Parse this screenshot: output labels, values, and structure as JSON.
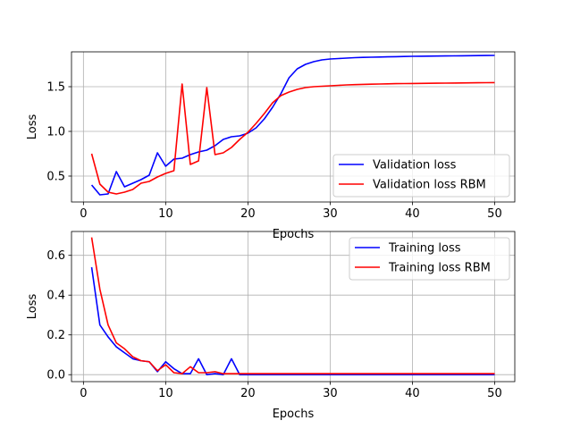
{
  "chart_data": [
    {
      "type": "line",
      "xlabel": "Epochs",
      "ylabel": "Loss",
      "xlim": [
        -1.45,
        52.45
      ],
      "ylim": [
        0.21,
        1.89
      ],
      "xticks": [
        0,
        10,
        20,
        30,
        40,
        50
      ],
      "yticks": [
        0.5,
        1.0,
        1.5
      ],
      "ytick_labels": [
        "0.5",
        "1.0",
        "1.5"
      ],
      "grid": true,
      "legend_position": "lower-right",
      "series": [
        {
          "name": "Validation loss",
          "color": "#0000ff",
          "x": [
            1,
            2,
            3,
            4,
            5,
            6,
            7,
            8,
            9,
            10,
            11,
            12,
            13,
            14,
            15,
            16,
            17,
            18,
            19,
            20,
            21,
            22,
            23,
            24,
            25,
            26,
            27,
            28,
            29,
            30,
            31,
            32,
            33,
            34,
            35,
            36,
            37,
            38,
            39,
            40,
            41,
            42,
            43,
            44,
            45,
            46,
            47,
            48,
            49,
            50
          ],
          "values": [
            0.4,
            0.29,
            0.3,
            0.55,
            0.38,
            0.42,
            0.46,
            0.51,
            0.76,
            0.61,
            0.69,
            0.7,
            0.74,
            0.77,
            0.79,
            0.84,
            0.91,
            0.94,
            0.95,
            0.98,
            1.04,
            1.14,
            1.27,
            1.42,
            1.6,
            1.7,
            1.75,
            1.78,
            1.8,
            1.81,
            1.815,
            1.82,
            1.825,
            1.828,
            1.83,
            1.832,
            1.834,
            1.836,
            1.838,
            1.84,
            1.841,
            1.842,
            1.843,
            1.844,
            1.845,
            1.846,
            1.847,
            1.848,
            1.849,
            1.85
          ]
        },
        {
          "name": " Validation loss RBM",
          "color": "#ff0000",
          "x": [
            1,
            2,
            3,
            4,
            5,
            6,
            7,
            8,
            9,
            10,
            11,
            12,
            13,
            14,
            15,
            16,
            17,
            18,
            19,
            20,
            21,
            22,
            23,
            24,
            25,
            26,
            27,
            28,
            29,
            30,
            31,
            32,
            33,
            34,
            35,
            36,
            37,
            38,
            39,
            40,
            41,
            42,
            43,
            44,
            45,
            46,
            47,
            48,
            49,
            50
          ],
          "values": [
            0.75,
            0.41,
            0.32,
            0.3,
            0.32,
            0.35,
            0.42,
            0.44,
            0.49,
            0.53,
            0.56,
            1.53,
            0.63,
            0.67,
            1.49,
            0.74,
            0.76,
            0.82,
            0.91,
            0.99,
            1.09,
            1.2,
            1.32,
            1.4,
            1.44,
            1.47,
            1.49,
            1.5,
            1.505,
            1.51,
            1.515,
            1.52,
            1.523,
            1.526,
            1.528,
            1.53,
            1.532,
            1.534,
            1.535,
            1.536,
            1.537,
            1.538,
            1.539,
            1.54,
            1.541,
            1.542,
            1.543,
            1.544,
            1.545,
            1.546
          ]
        }
      ]
    },
    {
      "type": "line",
      "xlabel": "Epochs",
      "ylabel": "Loss",
      "xlim": [
        -1.45,
        52.45
      ],
      "ylim": [
        -0.035,
        0.72
      ],
      "xticks": [
        0,
        10,
        20,
        30,
        40,
        50
      ],
      "yticks": [
        0.0,
        0.2,
        0.4,
        0.6
      ],
      "ytick_labels": [
        "0.0",
        "0.2",
        "0.4",
        "0.6"
      ],
      "grid": true,
      "legend_position": "upper-right",
      "series": [
        {
          "name": "Training loss",
          "color": "#0000ff",
          "x": [
            1,
            2,
            3,
            4,
            5,
            6,
            7,
            8,
            9,
            10,
            11,
            12,
            13,
            14,
            15,
            16,
            17,
            18,
            19,
            20,
            21,
            22,
            23,
            24,
            25,
            26,
            27,
            28,
            29,
            30,
            31,
            32,
            33,
            34,
            35,
            36,
            37,
            38,
            39,
            40,
            41,
            42,
            43,
            44,
            45,
            46,
            47,
            48,
            49,
            50
          ],
          "values": [
            0.54,
            0.25,
            0.19,
            0.14,
            0.11,
            0.08,
            0.07,
            0.065,
            0.015,
            0.065,
            0.03,
            0.005,
            0.005,
            0.08,
            0.0,
            0.005,
            0.0,
            0.08,
            0.0,
            0.0,
            0.0,
            0.0,
            0.0,
            0.0,
            0.0,
            0.0,
            0.0,
            0.0,
            0.0,
            0.0,
            0.0,
            0.0,
            0.0,
            0.0,
            0.0,
            0.0,
            0.0,
            0.0,
            0.0,
            0.0,
            0.0,
            0.0,
            0.0,
            0.0,
            0.0,
            0.0,
            0.0,
            0.0,
            0.0,
            0.0
          ]
        },
        {
          "name": " Training loss RBM",
          "color": "#ff0000",
          "x": [
            1,
            2,
            3,
            4,
            5,
            6,
            7,
            8,
            9,
            10,
            11,
            12,
            13,
            14,
            15,
            16,
            17,
            18,
            19,
            20,
            21,
            22,
            23,
            24,
            25,
            26,
            27,
            28,
            29,
            30,
            31,
            32,
            33,
            34,
            35,
            36,
            37,
            38,
            39,
            40,
            41,
            42,
            43,
            44,
            45,
            46,
            47,
            48,
            49,
            50
          ],
          "values": [
            0.69,
            0.43,
            0.25,
            0.16,
            0.13,
            0.09,
            0.07,
            0.065,
            0.02,
            0.05,
            0.01,
            0.005,
            0.04,
            0.01,
            0.01,
            0.015,
            0.005,
            0.005,
            0.005,
            0.005,
            0.005,
            0.005,
            0.005,
            0.005,
            0.005,
            0.005,
            0.005,
            0.005,
            0.005,
            0.005,
            0.005,
            0.005,
            0.005,
            0.005,
            0.005,
            0.005,
            0.005,
            0.005,
            0.005,
            0.005,
            0.005,
            0.005,
            0.005,
            0.005,
            0.005,
            0.005,
            0.005,
            0.005,
            0.005,
            0.005
          ]
        }
      ]
    }
  ]
}
